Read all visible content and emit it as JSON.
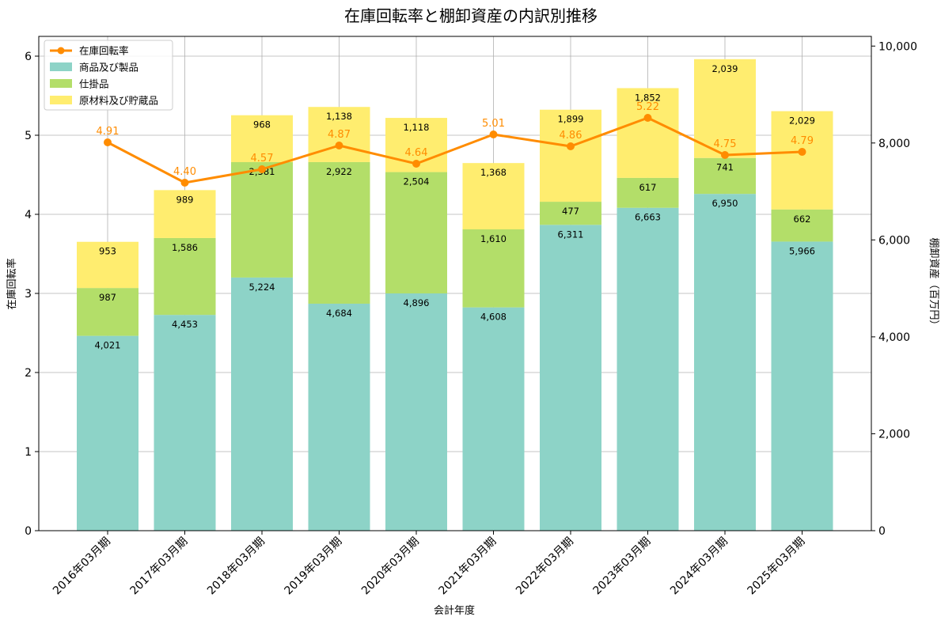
{
  "chart_data": {
    "type": "bar",
    "title": "在庫回転率と棚卸資産の内訳別推移",
    "xlabel": "会計年度",
    "ylabel_left": "在庫回転率",
    "ylabel_right": "棚卸資産（百万円）",
    "categories": [
      "2016年03月期",
      "2017年03月期",
      "2018年03月期",
      "2019年03月期",
      "2020年03月期",
      "2021年03月期",
      "2022年03月期",
      "2023年03月期",
      "2024年03月期",
      "2025年03月期"
    ],
    "series": [
      {
        "name": "商品及び製品",
        "kind": "stacked-bar",
        "axis": "right",
        "color": "#8dd3c7",
        "values": [
          4021,
          4453,
          5224,
          4684,
          4896,
          4608,
          6311,
          6663,
          6950,
          5966
        ],
        "labels": [
          "4,021",
          "4,453",
          "5,224",
          "4,684",
          "4,896",
          "4,608",
          "6,311",
          "6,663",
          "6,950",
          "5,966"
        ]
      },
      {
        "name": "仕掛品",
        "kind": "stacked-bar",
        "axis": "right",
        "color": "#b3de69",
        "values": [
          987,
          1586,
          2381,
          2922,
          2504,
          1610,
          477,
          617,
          741,
          662
        ],
        "labels": [
          "987",
          "1,586",
          "2,381",
          "2,922",
          "2,504",
          "1,610",
          "477",
          "617",
          "741",
          "662"
        ]
      },
      {
        "name": "原材料及び貯蔵品",
        "kind": "stacked-bar",
        "axis": "right",
        "color": "#ffed6f",
        "values": [
          953,
          989,
          968,
          1138,
          1118,
          1368,
          1899,
          1852,
          2039,
          2029
        ],
        "labels": [
          "953",
          "989",
          "968",
          "1,138",
          "1,118",
          "1,368",
          "1,899",
          "1,852",
          "2,039",
          "2,029"
        ]
      },
      {
        "name": "在庫回転率",
        "kind": "line",
        "axis": "left",
        "color": "#ff8c00",
        "values": [
          4.91,
          4.4,
          4.57,
          4.87,
          4.64,
          5.01,
          4.86,
          5.22,
          4.75,
          4.79
        ],
        "labels": [
          "4.91",
          "4.40",
          "4.57",
          "4.87",
          "4.64",
          "5.01",
          "4.86",
          "5.22",
          "4.75",
          "4.79"
        ]
      }
    ],
    "ylim_left": [
      0,
      6.25
    ],
    "ylim_right": [
      0,
      10200
    ],
    "yticks_left": [
      "0",
      "1",
      "2",
      "3",
      "4",
      "5",
      "6"
    ],
    "yticks_left_values": [
      0,
      1,
      2,
      3,
      4,
      5,
      6
    ],
    "yticks_right": [
      "0",
      "2,000",
      "4,000",
      "6,000",
      "8,000",
      "10,000"
    ],
    "yticks_right_values": [
      0,
      2000,
      4000,
      6000,
      8000,
      10000
    ],
    "grid": true,
    "legend_position": "top-left"
  }
}
